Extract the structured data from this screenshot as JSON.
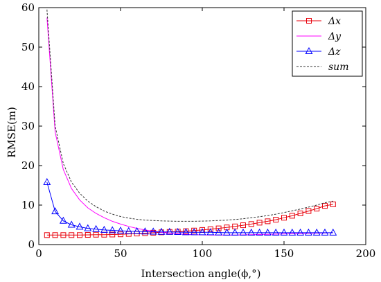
{
  "chart_data": {
    "type": "line",
    "xlabel": "Intersection angle(ϕ,°)",
    "ylabel": "RMSE(m)",
    "xlim": [
      0,
      200
    ],
    "ylim": [
      0,
      60
    ],
    "xticks": [
      0,
      50,
      100,
      150,
      200
    ],
    "yticks": [
      0,
      10,
      20,
      30,
      40,
      50,
      60
    ],
    "grid": false,
    "legend_position": "top-right",
    "x": [
      5,
      10,
      15,
      20,
      25,
      30,
      35,
      40,
      45,
      50,
      55,
      60,
      65,
      70,
      75,
      80,
      85,
      90,
      95,
      100,
      105,
      110,
      115,
      120,
      125,
      130,
      135,
      140,
      145,
      150,
      155,
      160,
      165,
      170,
      175,
      180
    ],
    "series": [
      {
        "name": "Δx",
        "color": "#e8000b",
        "marker": "square",
        "dash": "solid",
        "values": [
          2.4,
          2.4,
          2.4,
          2.4,
          2.4,
          2.45,
          2.5,
          2.5,
          2.55,
          2.6,
          2.7,
          2.8,
          2.9,
          3.0,
          3.1,
          3.2,
          3.3,
          3.4,
          3.55,
          3.7,
          3.9,
          4.1,
          4.35,
          4.6,
          4.9,
          5.2,
          5.55,
          5.9,
          6.3,
          6.8,
          7.3,
          7.9,
          8.5,
          9.1,
          9.8,
          10.2
        ]
      },
      {
        "name": "Δy",
        "color": "#ff00ff",
        "marker": "none",
        "dash": "solid",
        "values": [
          57.5,
          28.5,
          19.0,
          14.2,
          11.3,
          9.3,
          7.9,
          6.8,
          5.9,
          5.2,
          4.6,
          4.1,
          3.7,
          3.4,
          3.1,
          2.9,
          2.75,
          2.6,
          2.5,
          2.45,
          2.4,
          2.4,
          2.4,
          2.4,
          2.45,
          2.5,
          2.55,
          2.6,
          2.65,
          2.7,
          2.75,
          2.8,
          2.85,
          2.9,
          2.95,
          3.0
        ]
      },
      {
        "name": "Δz",
        "color": "#0000ff",
        "marker": "triangle",
        "dash": "solid",
        "values": [
          15.8,
          8.4,
          6.0,
          5.0,
          4.5,
          4.1,
          3.9,
          3.7,
          3.6,
          3.5,
          3.4,
          3.35,
          3.3,
          3.25,
          3.2,
          3.2,
          3.15,
          3.1,
          3.1,
          3.1,
          3.1,
          3.05,
          3.0,
          3.0,
          3.0,
          3.0,
          3.0,
          3.0,
          3.0,
          3.0,
          3.0,
          3.0,
          3.0,
          3.0,
          3.0,
          3.0
        ]
      },
      {
        "name": "sum",
        "color": "#333333",
        "marker": "none",
        "dash": "dashed",
        "values": [
          59.5,
          30.0,
          20.5,
          15.8,
          13.0,
          11.0,
          9.6,
          8.5,
          7.7,
          7.1,
          6.7,
          6.4,
          6.2,
          6.1,
          6.0,
          5.95,
          5.9,
          5.9,
          5.9,
          5.95,
          6.0,
          6.1,
          6.2,
          6.35,
          6.55,
          6.8,
          7.05,
          7.35,
          7.7,
          8.1,
          8.55,
          9.0,
          9.5,
          10.0,
          10.6,
          11.0
        ]
      }
    ]
  }
}
